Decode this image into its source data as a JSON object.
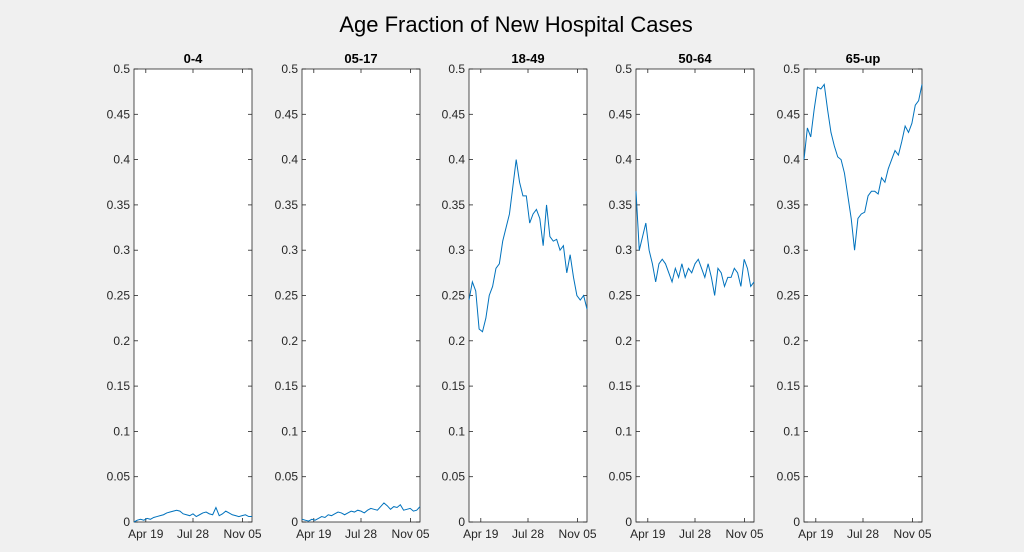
{
  "figure": {
    "title": "Age Fraction of New Hospital Cases",
    "background": "#f0f0f0",
    "line_color": "#0072bd"
  },
  "chart_data": [
    {
      "type": "line",
      "title": "0-4",
      "ylim": [
        0,
        0.5
      ],
      "yticks": [
        "0",
        "0.05",
        "0.1",
        "0.15",
        "0.2",
        "0.25",
        "0.3",
        "0.35",
        "0.4",
        "0.45",
        "0.5"
      ],
      "xticks": [
        "Apr 19",
        "Jul 28",
        "Nov 05"
      ],
      "series": [
        {
          "values": [
            0.0,
            0.002,
            0.003,
            0.002,
            0.004,
            0.003,
            0.005,
            0.006,
            0.007,
            0.008,
            0.01,
            0.011,
            0.012,
            0.013,
            0.012,
            0.009,
            0.008,
            0.007,
            0.009,
            0.006,
            0.008,
            0.01,
            0.011,
            0.009,
            0.008,
            0.016,
            0.007,
            0.009,
            0.012,
            0.01,
            0.008,
            0.007,
            0.006,
            0.007,
            0.008,
            0.006,
            0.006
          ]
        }
      ]
    },
    {
      "type": "line",
      "title": "05-17",
      "ylim": [
        0,
        0.5
      ],
      "yticks": [
        "0",
        "0.05",
        "0.1",
        "0.15",
        "0.2",
        "0.25",
        "0.3",
        "0.35",
        "0.4",
        "0.45",
        "0.5"
      ],
      "xticks": [
        "Apr 19",
        "Jul 28",
        "Nov 05"
      ],
      "series": [
        {
          "values": [
            0.003,
            0.002,
            0.001,
            0.003,
            0.002,
            0.004,
            0.006,
            0.005,
            0.008,
            0.007,
            0.009,
            0.011,
            0.01,
            0.008,
            0.01,
            0.012,
            0.011,
            0.013,
            0.012,
            0.01,
            0.013,
            0.015,
            0.014,
            0.013,
            0.017,
            0.021,
            0.018,
            0.014,
            0.017,
            0.016,
            0.019,
            0.013,
            0.014,
            0.015,
            0.012,
            0.013,
            0.017
          ]
        }
      ]
    },
    {
      "type": "line",
      "title": "18-49",
      "ylim": [
        0,
        0.5
      ],
      "yticks": [
        "0",
        "0.05",
        "0.1",
        "0.15",
        "0.2",
        "0.25",
        "0.3",
        "0.35",
        "0.4",
        "0.45",
        "0.5"
      ],
      "xticks": [
        "Apr 19",
        "Jul 28",
        "Nov 05"
      ],
      "series": [
        {
          "values": [
            0.245,
            0.265,
            0.255,
            0.213,
            0.21,
            0.225,
            0.25,
            0.26,
            0.28,
            0.285,
            0.31,
            0.325,
            0.34,
            0.37,
            0.4,
            0.375,
            0.36,
            0.36,
            0.33,
            0.34,
            0.345,
            0.335,
            0.305,
            0.35,
            0.315,
            0.31,
            0.312,
            0.3,
            0.305,
            0.275,
            0.295,
            0.27,
            0.25,
            0.245,
            0.25,
            0.235
          ]
        }
      ]
    },
    {
      "type": "line",
      "title": "50-64",
      "ylim": [
        0,
        0.5
      ],
      "yticks": [
        "0",
        "0.05",
        "0.1",
        "0.15",
        "0.2",
        "0.25",
        "0.3",
        "0.35",
        "0.4",
        "0.45",
        "0.5"
      ],
      "xticks": [
        "Apr 19",
        "Jul 28",
        "Nov 05"
      ],
      "series": [
        {
          "values": [
            0.365,
            0.3,
            0.315,
            0.33,
            0.3,
            0.285,
            0.265,
            0.285,
            0.29,
            0.285,
            0.275,
            0.265,
            0.28,
            0.27,
            0.285,
            0.27,
            0.28,
            0.275,
            0.285,
            0.29,
            0.28,
            0.27,
            0.285,
            0.27,
            0.25,
            0.28,
            0.275,
            0.26,
            0.27,
            0.27,
            0.28,
            0.275,
            0.26,
            0.29,
            0.28,
            0.26,
            0.265
          ]
        }
      ]
    },
    {
      "type": "line",
      "title": "65-up",
      "ylim": [
        0,
        0.5
      ],
      "yticks": [
        "0",
        "0.05",
        "0.1",
        "0.15",
        "0.2",
        "0.25",
        "0.3",
        "0.35",
        "0.4",
        "0.45",
        "0.5"
      ],
      "xticks": [
        "Apr 19",
        "Jul 28",
        "Nov 05"
      ],
      "series": [
        {
          "values": [
            0.4,
            0.435,
            0.425,
            0.455,
            0.48,
            0.478,
            0.483,
            0.455,
            0.43,
            0.415,
            0.403,
            0.4,
            0.385,
            0.36,
            0.335,
            0.3,
            0.335,
            0.34,
            0.342,
            0.36,
            0.365,
            0.365,
            0.362,
            0.38,
            0.375,
            0.39,
            0.4,
            0.41,
            0.405,
            0.42,
            0.437,
            0.43,
            0.44,
            0.46,
            0.465,
            0.483
          ]
        }
      ]
    }
  ]
}
